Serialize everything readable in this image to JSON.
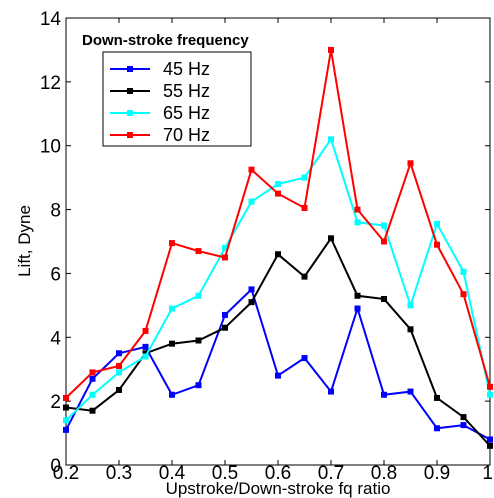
{
  "chart_data": {
    "type": "line",
    "xlabel": "Upstroke/Down-stroke fq ratio",
    "ylabel": "Lift, Dyne",
    "xlim": [
      0.2,
      1.0
    ],
    "ylim": [
      0,
      14
    ],
    "xticks": [
      0.2,
      0.3,
      0.4,
      0.5,
      0.6,
      0.7,
      0.8,
      0.9,
      1.0
    ],
    "xtick_labels": [
      "0.2",
      "0.3",
      "0.4",
      "0.5",
      "0.6",
      "0.7",
      "0.8",
      "0.9",
      "1"
    ],
    "yticks": [
      0,
      2,
      4,
      6,
      8,
      10,
      12,
      14
    ],
    "ytick_labels": [
      "0",
      "2",
      "4",
      "6",
      "8",
      "10",
      "12",
      "14"
    ],
    "grid": false,
    "legend": {
      "title": "Down-stroke frequency",
      "placement": "top-left"
    },
    "x": [
      0.2,
      0.25,
      0.3,
      0.35,
      0.4,
      0.45,
      0.5,
      0.55,
      0.6,
      0.65,
      0.7,
      0.75,
      0.8,
      0.85,
      0.9,
      0.95,
      1.0
    ],
    "series": [
      {
        "name": "45 Hz",
        "color": "#0000ff",
        "marker": "square",
        "values": [
          1.1,
          2.7,
          3.5,
          3.7,
          2.2,
          2.5,
          4.7,
          5.5,
          2.8,
          3.35,
          2.3,
          4.9,
          2.2,
          2.3,
          1.15,
          1.25,
          0.8
        ]
      },
      {
        "name": "55 Hz",
        "color": "#000000",
        "marker": "square",
        "values": [
          1.8,
          1.7,
          2.35,
          3.5,
          3.8,
          3.9,
          4.3,
          5.1,
          6.6,
          5.9,
          7.1,
          5.3,
          5.2,
          4.25,
          2.1,
          1.5,
          0.6
        ]
      },
      {
        "name": "65 Hz",
        "color": "#00ffff",
        "marker": "square",
        "values": [
          1.4,
          2.2,
          2.9,
          3.4,
          4.9,
          5.3,
          6.8,
          8.25,
          8.8,
          9.0,
          10.2,
          7.6,
          7.5,
          5.0,
          7.55,
          6.05,
          2.2
        ]
      },
      {
        "name": "70 Hz",
        "color": "#ff0000",
        "marker": "square",
        "values": [
          2.1,
          2.9,
          3.1,
          4.2,
          6.95,
          6.7,
          6.5,
          9.25,
          8.5,
          8.05,
          13.0,
          8.0,
          7.0,
          9.45,
          6.9,
          5.35,
          2.45
        ]
      }
    ]
  }
}
